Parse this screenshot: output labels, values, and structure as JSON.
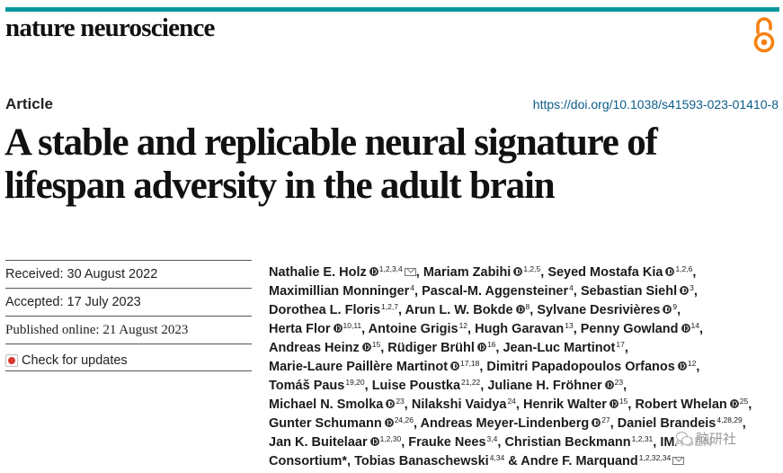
{
  "journal": {
    "name": "nature neuroscience"
  },
  "header": {
    "accent_color": "#08979c",
    "open_access_icon": "open-access-icon"
  },
  "article": {
    "type": "Article",
    "doi": "https://doi.org/10.1038/s41593-023-01410-8",
    "title_line1": "A stable and replicable neural signature of",
    "title_line2": "lifespan adversity in the adult brain"
  },
  "meta": {
    "received": "Received: 30 August 2022",
    "accepted": "Accepted: 17 July 2023",
    "published": "Published online: 21 August 2023",
    "check_updates": "Check for updates"
  },
  "authors": [
    [
      {
        "name": "Nathalie E. Holz",
        "orcid": true,
        "sup": "1,2,3,4",
        "mail": true,
        "sep": ","
      },
      {
        "name": "Mariam Zabihi",
        "orcid": true,
        "sup": "1,2,5",
        "sep": ","
      },
      {
        "name": "Seyed Mostafa Kia",
        "orcid": true,
        "sup": "1,2,6",
        "sep": ","
      }
    ],
    [
      {
        "name": "Maximillian Monninger",
        "sup": "4",
        "sep": ","
      },
      {
        "name": "Pascal-M. Aggensteiner",
        "sup": "4",
        "sep": ","
      },
      {
        "name": "Sebastian Siehl",
        "orcid": true,
        "sup": "3",
        "sep": ","
      }
    ],
    [
      {
        "name": "Dorothea L. Floris",
        "sup": "1,2,7",
        "sep": ","
      },
      {
        "name": "Arun L. W. Bokde",
        "orcid": true,
        "sup": "8",
        "sep": ","
      },
      {
        "name": "Sylvane Desrivières",
        "orcid": true,
        "sup": "9",
        "sep": ","
      }
    ],
    [
      {
        "name": "Herta Flor",
        "orcid": true,
        "sup": "10,11",
        "sep": ","
      },
      {
        "name": "Antoine Grigis",
        "sup": "12",
        "sep": ","
      },
      {
        "name": "Hugh Garavan",
        "sup": "13",
        "sep": ","
      },
      {
        "name": "Penny Gowland",
        "orcid": true,
        "sup": "14",
        "sep": ","
      }
    ],
    [
      {
        "name": "Andreas Heinz",
        "orcid": true,
        "sup": "15",
        "sep": ","
      },
      {
        "name": "Rüdiger Brühl",
        "orcid": true,
        "sup": "16",
        "sep": ","
      },
      {
        "name": "Jean-Luc Martinot",
        "sup": "17",
        "sep": ","
      }
    ],
    [
      {
        "name": "Marie-Laure Paillère Martinot",
        "orcid": true,
        "sup": "17,18",
        "sep": ","
      },
      {
        "name": "Dimitri Papadopoulos Orfanos",
        "orcid": true,
        "sup": "12",
        "sep": ","
      }
    ],
    [
      {
        "name": "Tomáš Paus",
        "sup": "19,20",
        "sep": ","
      },
      {
        "name": "Luise Poustka",
        "sup": "21,22",
        "sep": ","
      },
      {
        "name": "Juliane H. Fröhner",
        "orcid": true,
        "sup": "23",
        "sep": ","
      }
    ],
    [
      {
        "name": "Michael N. Smolka",
        "orcid": true,
        "sup": "23",
        "sep": ","
      },
      {
        "name": "Nilakshi Vaidya",
        "sup": "24",
        "sep": ","
      },
      {
        "name": "Henrik Walter",
        "orcid": true,
        "sup": "15",
        "sep": ","
      },
      {
        "name": "Robert Whelan",
        "orcid": true,
        "sup": "25",
        "sep": ","
      }
    ],
    [
      {
        "name": "Gunter Schumann",
        "orcid": true,
        "sup": "24,26",
        "sep": ","
      },
      {
        "name": "Andreas Meyer-Lindenberg",
        "orcid": true,
        "sup": "27",
        "sep": ","
      },
      {
        "name": "Daniel Brandeis",
        "sup": "4,28,29",
        "sep": ","
      }
    ],
    [
      {
        "name": "Jan K. Buitelaar",
        "orcid": true,
        "sup": "1,2,30",
        "sep": ","
      },
      {
        "name": "Frauke Nees",
        "sup": "3,4",
        "sep": ","
      },
      {
        "name": "Christian Beckmann",
        "sup": "1,2,31",
        "sep": ","
      },
      {
        "name": "IMAGEN",
        "sep": ""
      }
    ],
    [
      {
        "name": "Consortium*",
        "sep": ","
      },
      {
        "name": "Tobias Banaschewski",
        "sup": "4,34",
        "sep": " &"
      },
      {
        "name": "Andre F. Marquand",
        "sup": "1,2,32,34",
        "mail": true,
        "sep": ""
      }
    ]
  ],
  "watermark": {
    "text": "脑研社",
    "icon": "wechat-icon"
  }
}
